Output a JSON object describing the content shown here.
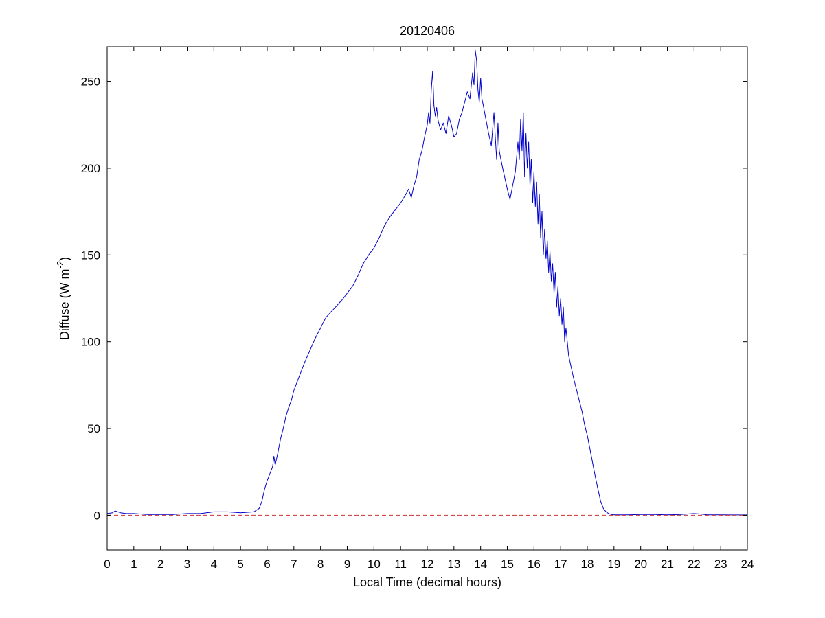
{
  "chart_data": {
    "type": "line",
    "title": "20120406",
    "xlabel": "Local Time (decimal hours)",
    "ylabel": {
      "text": "Diffuse (W m",
      "sup": "-2",
      "close": ")"
    },
    "xlim": [
      0,
      24
    ],
    "ylim": [
      -20,
      270
    ],
    "xticks": [
      0,
      1,
      2,
      3,
      4,
      5,
      6,
      7,
      8,
      9,
      10,
      11,
      12,
      13,
      14,
      15,
      16,
      17,
      18,
      19,
      20,
      21,
      22,
      23,
      24
    ],
    "yticks": [
      0,
      50,
      100,
      150,
      200,
      250
    ],
    "grid": false,
    "legend": "none",
    "series": [
      {
        "color": "#0000cc",
        "style": "solid",
        "x": [
          0,
          0.2,
          0.3,
          0.5,
          0.7,
          1,
          1.5,
          2,
          2.5,
          3,
          3.5,
          4,
          4.5,
          5,
          5.5,
          5.7,
          5.8,
          5.9,
          6,
          6.1,
          6.2,
          6.25,
          6.3,
          6.4,
          6.5,
          6.6,
          6.7,
          6.8,
          6.9,
          7,
          7.2,
          7.4,
          7.6,
          7.8,
          8,
          8.2,
          8.5,
          8.8,
          9,
          9.2,
          9.4,
          9.6,
          9.8,
          10,
          10.2,
          10.4,
          10.6,
          10.8,
          11,
          11.2,
          11.3,
          11.4,
          11.5,
          11.6,
          11.7,
          11.8,
          11.9,
          12,
          12.05,
          12.1,
          12.15,
          12.2,
          12.25,
          12.3,
          12.35,
          12.4,
          12.5,
          12.6,
          12.7,
          12.8,
          12.9,
          13,
          13.1,
          13.2,
          13.3,
          13.4,
          13.5,
          13.6,
          13.7,
          13.75,
          13.8,
          13.85,
          13.9,
          13.95,
          14,
          14.05,
          14.1,
          14.15,
          14.2,
          14.3,
          14.4,
          14.5,
          14.55,
          14.6,
          14.65,
          14.7,
          14.8,
          14.9,
          15,
          15.1,
          15.2,
          15.3,
          15.4,
          15.45,
          15.5,
          15.55,
          15.6,
          15.65,
          15.7,
          15.75,
          15.8,
          15.85,
          15.9,
          15.95,
          16,
          16.05,
          16.1,
          16.15,
          16.2,
          16.25,
          16.3,
          16.35,
          16.4,
          16.45,
          16.5,
          16.55,
          16.6,
          16.65,
          16.7,
          16.75,
          16.8,
          16.85,
          16.9,
          16.95,
          17,
          17.05,
          17.1,
          17.15,
          17.2,
          17.3,
          17.4,
          17.5,
          17.6,
          17.7,
          17.8,
          17.9,
          18,
          18.1,
          18.2,
          18.3,
          18.4,
          18.5,
          18.6,
          18.7,
          18.8,
          18.9,
          19,
          19.2,
          19.5,
          20,
          20.5,
          21,
          21.5,
          22,
          22.2,
          22.5,
          23,
          23.5,
          24
        ],
        "y": [
          1,
          1.5,
          2.5,
          1.5,
          1,
          1,
          0.5,
          0.5,
          0.5,
          1,
          1,
          2,
          2,
          1.5,
          2,
          4,
          8,
          15,
          20,
          24,
          28,
          34,
          29,
          36,
          44,
          50,
          57,
          62,
          66,
          72,
          80,
          88,
          95,
          102,
          108,
          114,
          119,
          124,
          128,
          132,
          138,
          145,
          150,
          154,
          160,
          167,
          172,
          176,
          180,
          185,
          188,
          183,
          190,
          195,
          205,
          210,
          218,
          225,
          232,
          226,
          245,
          256,
          236,
          230,
          235,
          228,
          222,
          226,
          220,
          230,
          225,
          218,
          220,
          228,
          232,
          238,
          244,
          240,
          255,
          248,
          268,
          262,
          245,
          238,
          252,
          240,
          236,
          232,
          228,
          220,
          213,
          232,
          218,
          205,
          226,
          210,
          202,
          195,
          188,
          182,
          190,
          198,
          215,
          205,
          228,
          210,
          232,
          195,
          220,
          200,
          215,
          190,
          205,
          180,
          198,
          178,
          192,
          168,
          185,
          160,
          175,
          150,
          165,
          148,
          158,
          140,
          152,
          135,
          145,
          128,
          140,
          120,
          132,
          115,
          125,
          110,
          120,
          100,
          108,
          92,
          85,
          78,
          72,
          66,
          60,
          52,
          46,
          38,
          30,
          22,
          15,
          8,
          4,
          2,
          1,
          0.5,
          0.3,
          0.3,
          0.3,
          0.5,
          0.5,
          0.3,
          0.5,
          1,
          0.8,
          0.3,
          0.3,
          0.2,
          0.2
        ]
      },
      {
        "color": "#cc3333",
        "style": "dashed",
        "x": [
          0,
          24
        ],
        "y": [
          0,
          0
        ]
      }
    ]
  }
}
